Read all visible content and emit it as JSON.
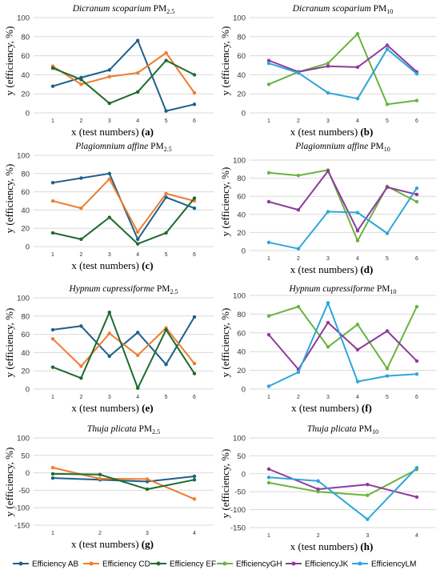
{
  "x_axis_label": "x (test numbers)",
  "y_axis_label": "y (efficiency, %)",
  "colors": {
    "AB": "#1f5f8b",
    "CD": "#ed7d31",
    "EF": "#1e6b2e",
    "GH": "#6ab33e",
    "JK": "#8e3a9c",
    "LM": "#2ea6d8"
  },
  "legend": [
    {
      "key": "AB",
      "label": "Efficiency AB"
    },
    {
      "key": "CD",
      "label": "Efficiency CD"
    },
    {
      "key": "EF",
      "label": "Efficiency EF"
    },
    {
      "key": "GH",
      "label": "EfficiencyGH"
    },
    {
      "key": "JK",
      "label": "EfficiencyJK"
    },
    {
      "key": "LM",
      "label": "EfficiencyLM"
    }
  ],
  "chart_data": [
    {
      "type": "line",
      "title_species": "Dicranum scoparium",
      "title_pm": "PM",
      "title_sub": "2.5",
      "panel_label": "(a)",
      "ylim": [
        0,
        100
      ],
      "yticks": [
        0,
        20,
        40,
        60,
        80,
        100
      ],
      "x": [
        1,
        2,
        3,
        4,
        5,
        6
      ],
      "series": [
        {
          "key": "AB",
          "values": [
            28,
            37,
            45,
            76,
            2,
            9
          ]
        },
        {
          "key": "CD",
          "values": [
            49,
            30,
            38,
            42,
            63,
            21
          ]
        },
        {
          "key": "EF",
          "values": [
            47,
            35,
            10,
            22,
            55,
            40
          ]
        }
      ]
    },
    {
      "type": "line",
      "title_species": "Dicranum scoparium",
      "title_pm": "PM",
      "title_sub": "10",
      "panel_label": "(b)",
      "ylim": [
        0,
        100
      ],
      "yticks": [
        0,
        20,
        40,
        60,
        80,
        100
      ],
      "x": [
        1,
        2,
        3,
        4,
        5,
        6
      ],
      "series": [
        {
          "key": "GH",
          "values": [
            30,
            43,
            52,
            83,
            9,
            13
          ]
        },
        {
          "key": "JK",
          "values": [
            55,
            43,
            49,
            48,
            71,
            43
          ]
        },
        {
          "key": "LM",
          "values": [
            52,
            42,
            21,
            15,
            67,
            41
          ]
        }
      ]
    },
    {
      "type": "line",
      "title_species": "Plagiomnium affine",
      "title_pm": "PM",
      "title_sub": "2.5",
      "panel_label": "(c)",
      "ylim": [
        0,
        100
      ],
      "yticks": [
        0,
        20,
        40,
        60,
        80,
        100
      ],
      "x": [
        1,
        2,
        3,
        4,
        5,
        6
      ],
      "series": [
        {
          "key": "AB",
          "values": [
            70,
            75,
            80,
            8,
            54,
            42
          ]
        },
        {
          "key": "CD",
          "values": [
            50,
            42,
            74,
            16,
            58,
            50
          ]
        },
        {
          "key": "EF",
          "values": [
            15,
            8,
            32,
            3,
            15,
            53
          ]
        }
      ]
    },
    {
      "type": "line",
      "title_species": "Plagiomnium affine",
      "title_pm": "PM",
      "title_sub": "10",
      "panel_label": "(d)",
      "ylim": [
        0,
        100
      ],
      "yticks": [
        0,
        20,
        40,
        60,
        80,
        100
      ],
      "x": [
        1,
        2,
        3,
        4,
        5,
        6
      ],
      "series": [
        {
          "key": "GH",
          "values": [
            86,
            83,
            89,
            11,
            71,
            54
          ]
        },
        {
          "key": "JK",
          "values": [
            54,
            45,
            88,
            22,
            70,
            62
          ]
        },
        {
          "key": "LM",
          "values": [
            9,
            2,
            43,
            42,
            19,
            69
          ]
        }
      ]
    },
    {
      "type": "line",
      "title_species": "Hypnum cupressiforme",
      "title_pm": "PM",
      "title_sub": "2.5",
      "panel_label": "(e)",
      "ylim": [
        0,
        100
      ],
      "yticks": [
        0,
        20,
        40,
        60,
        80,
        100
      ],
      "x": [
        1,
        2,
        3,
        4,
        5,
        6
      ],
      "series": [
        {
          "key": "AB",
          "values": [
            65,
            69,
            36,
            62,
            27,
            79
          ]
        },
        {
          "key": "CD",
          "values": [
            55,
            25,
            61,
            37,
            67,
            28
          ]
        },
        {
          "key": "EF",
          "values": [
            24,
            12,
            84,
            1,
            65,
            17
          ]
        }
      ]
    },
    {
      "type": "line",
      "title_species": "Hypnum cupressiforme",
      "title_pm": "PM",
      "title_sub": "10",
      "panel_label": "(f)",
      "ylim": [
        0,
        100
      ],
      "yticks": [
        0,
        20,
        40,
        60,
        80,
        100
      ],
      "x": [
        1,
        2,
        3,
        4,
        5,
        6
      ],
      "series": [
        {
          "key": "GH",
          "values": [
            78,
            88,
            45,
            69,
            22,
            88
          ]
        },
        {
          "key": "JK",
          "values": [
            58,
            21,
            71,
            42,
            62,
            30
          ]
        },
        {
          "key": "LM",
          "values": [
            3,
            18,
            92,
            8,
            14,
            16
          ]
        }
      ]
    },
    {
      "type": "line",
      "title_species": "Thuja plicata",
      "title_pm": "PM",
      "title_sub": "2.5",
      "panel_label": "(g)",
      "ylim": [
        -150,
        100
      ],
      "yticks": [
        -150,
        -100,
        -50,
        0,
        50,
        100
      ],
      "x": [
        1,
        2,
        3,
        4
      ],
      "series": [
        {
          "key": "AB",
          "values": [
            -15,
            -20,
            -25,
            -10
          ]
        },
        {
          "key": "CD",
          "values": [
            15,
            -17,
            -18,
            -75
          ]
        },
        {
          "key": "EF",
          "values": [
            -3,
            -5,
            -47,
            -20
          ]
        }
      ]
    },
    {
      "type": "line",
      "title_species": "Thuja plicata",
      "title_pm": "PM",
      "title_sub": "10",
      "panel_label": "(h)",
      "ylim": [
        -150,
        100
      ],
      "yticks": [
        -150,
        -100,
        -50,
        0,
        50,
        100
      ],
      "x": [
        1,
        2,
        3,
        4
      ],
      "series": [
        {
          "key": "GH",
          "values": [
            -25,
            -50,
            -60,
            12
          ]
        },
        {
          "key": "JK",
          "values": [
            13,
            -43,
            -30,
            -65
          ]
        },
        {
          "key": "LM",
          "values": [
            -10,
            -20,
            -127,
            17
          ]
        }
      ]
    }
  ]
}
